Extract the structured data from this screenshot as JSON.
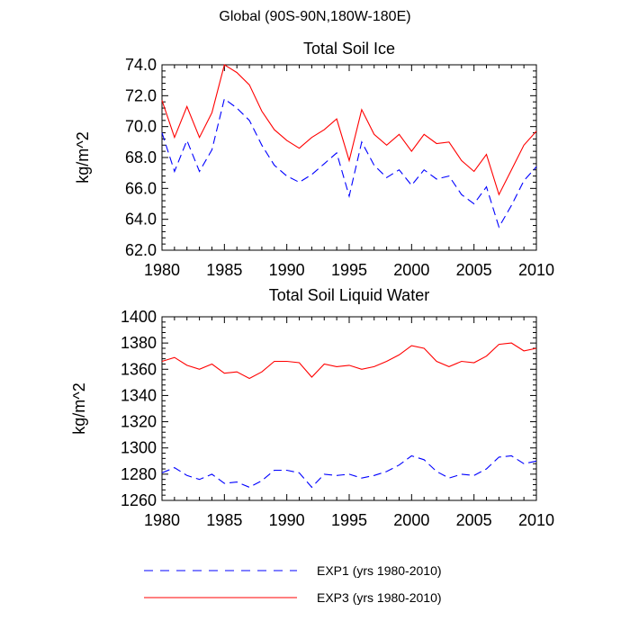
{
  "figure_title": "Global (90S-90N,180W-180E)",
  "colors": {
    "exp1": "#0000ff",
    "exp3": "#ff0000",
    "frame": "#000000"
  },
  "legend": {
    "items": [
      {
        "label": "EXP1 (yrs 1980-2010)",
        "color": "#0000ff",
        "dash": "dashed"
      },
      {
        "label": "EXP3 (yrs 1980-2010)",
        "color": "#ff0000",
        "dash": "solid"
      }
    ]
  },
  "chart_data": [
    {
      "type": "line",
      "title": "Total Soil Ice",
      "xlabel": "",
      "ylabel": "kg/m^2",
      "xlim": [
        1980,
        2010
      ],
      "ylim": [
        62.0,
        74.0
      ],
      "xticks": [
        "1980",
        "1985",
        "1990",
        "1995",
        "2000",
        "2005",
        "2010"
      ],
      "yticks": [
        "62.0",
        "64.0",
        "66.0",
        "68.0",
        "70.0",
        "72.0",
        "74.0"
      ],
      "grid": false,
      "x": [
        1980,
        1981,
        1982,
        1983,
        1984,
        1985,
        1986,
        1987,
        1988,
        1989,
        1990,
        1991,
        1992,
        1993,
        1994,
        1995,
        1996,
        1997,
        1998,
        1999,
        2000,
        2001,
        2002,
        2003,
        2004,
        2005,
        2006,
        2007,
        2008,
        2009,
        2010
      ],
      "series": [
        {
          "name": "EXP1 (yrs 1980-2010)",
          "color": "#0000ff",
          "dash": "dashed",
          "values": [
            69.6,
            67.1,
            69.1,
            67.1,
            68.5,
            71.8,
            71.2,
            70.4,
            68.8,
            67.5,
            66.8,
            66.4,
            66.9,
            67.6,
            68.3,
            65.5,
            69.0,
            67.5,
            66.7,
            67.2,
            66.2,
            67.2,
            66.6,
            66.8,
            65.6,
            65.0,
            66.1,
            63.5,
            64.9,
            66.5,
            67.4
          ]
        },
        {
          "name": "EXP3 (yrs 1980-2010)",
          "color": "#ff0000",
          "dash": "solid",
          "values": [
            71.7,
            69.3,
            71.3,
            69.3,
            70.9,
            74.0,
            73.5,
            72.7,
            71.0,
            69.8,
            69.1,
            68.6,
            69.3,
            69.8,
            70.5,
            67.8,
            71.1,
            69.5,
            68.8,
            69.5,
            68.4,
            69.5,
            68.9,
            69.0,
            67.8,
            67.1,
            68.2,
            65.6,
            67.2,
            68.8,
            69.7
          ]
        }
      ]
    },
    {
      "type": "line",
      "title": "Total Soil Liquid Water",
      "xlabel": "",
      "ylabel": "kg/m^2",
      "xlim": [
        1980,
        2010
      ],
      "ylim": [
        1260,
        1400
      ],
      "xticks": [
        "1980",
        "1985",
        "1990",
        "1995",
        "2000",
        "2005",
        "2010"
      ],
      "yticks": [
        "1260",
        "1280",
        "1300",
        "1320",
        "1340",
        "1360",
        "1380",
        "1400"
      ],
      "grid": false,
      "x": [
        1980,
        1981,
        1982,
        1983,
        1984,
        1985,
        1986,
        1987,
        1988,
        1989,
        1990,
        1991,
        1992,
        1993,
        1994,
        1995,
        1996,
        1997,
        1998,
        1999,
        2000,
        2001,
        2002,
        2003,
        2004,
        2005,
        2006,
        2007,
        2008,
        2009,
        2010
      ],
      "series": [
        {
          "name": "EXP1 (yrs 1980-2010)",
          "color": "#0000ff",
          "dash": "dashed",
          "values": [
            1281,
            1285,
            1279,
            1276,
            1280,
            1273,
            1274,
            1270,
            1275,
            1283,
            1283,
            1281,
            1270,
            1280,
            1279,
            1280,
            1277,
            1279,
            1282,
            1287,
            1294,
            1291,
            1282,
            1277,
            1280,
            1279,
            1284,
            1293,
            1294,
            1288,
            1290
          ]
        },
        {
          "name": "EXP3 (yrs 1980-2010)",
          "color": "#ff0000",
          "dash": "solid",
          "values": [
            1366,
            1369,
            1363,
            1360,
            1364,
            1357,
            1358,
            1353,
            1358,
            1366,
            1366,
            1365,
            1354,
            1364,
            1362,
            1363,
            1360,
            1362,
            1366,
            1371,
            1378,
            1376,
            1366,
            1362,
            1366,
            1365,
            1370,
            1379,
            1380,
            1374,
            1376
          ]
        }
      ]
    }
  ]
}
